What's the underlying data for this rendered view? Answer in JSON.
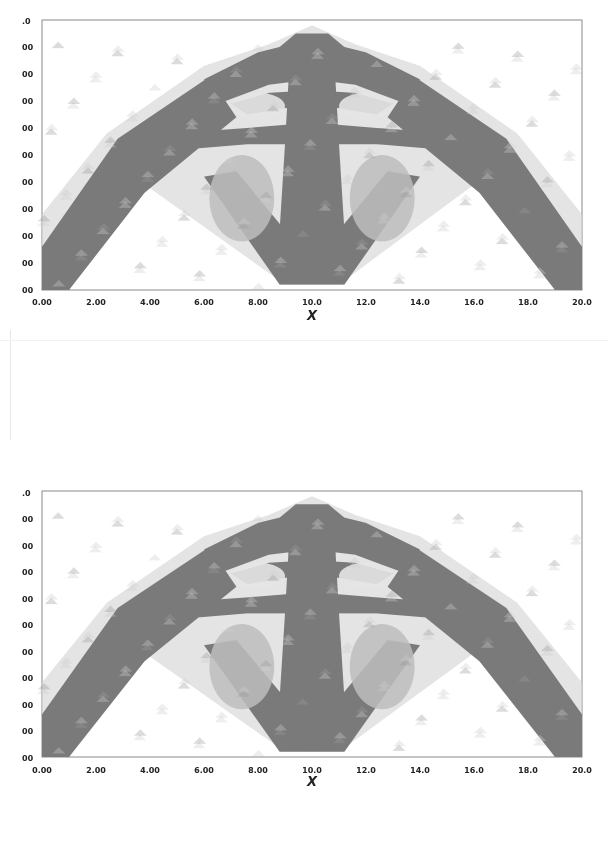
{
  "figures": [
    {
      "id": "top",
      "x_ticks": [
        "0.00",
        "2.00",
        "4.00",
        "6.00",
        "8.00",
        "10.0",
        "12.0",
        "14.0",
        "16.0",
        "18.0",
        "20.0"
      ],
      "y_ticks": [
        ".0",
        "00",
        "00",
        "00",
        "00",
        "00",
        "00",
        "00",
        "00",
        "00",
        "00"
      ],
      "x_label": "X"
    },
    {
      "id": "bottom",
      "x_ticks": [
        "0.00",
        "2.00",
        "4.00",
        "6.00",
        "8.00",
        "10.0",
        "12.0",
        "14.0",
        "16.0",
        "18.0",
        "20.0"
      ],
      "y_ticks": [
        ".0",
        "00",
        "00",
        "00",
        "00",
        "00",
        "00",
        "00",
        "00",
        "00",
        "00"
      ],
      "x_label": "X"
    }
  ],
  "colors": {
    "material": "#7a7a7a",
    "material_light": "#bdbdbd",
    "axis": "#888888",
    "background": "#ffffff"
  }
}
